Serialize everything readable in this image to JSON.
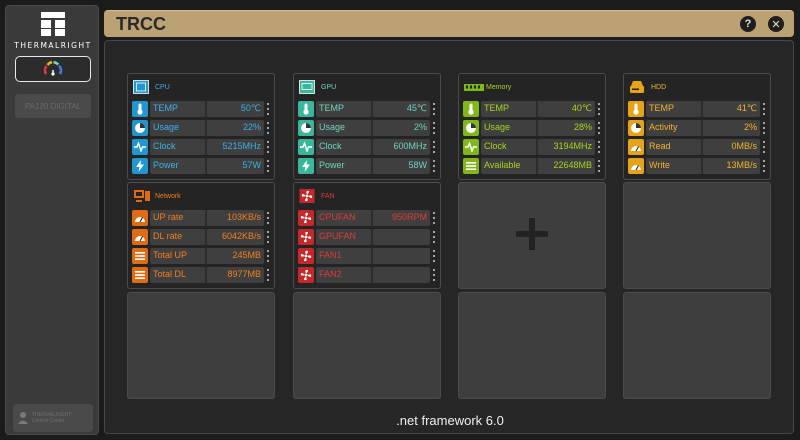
{
  "sidebar": {
    "logo_text": "THERMALRIGHT",
    "device_item": "PA120 DIGITAL",
    "control_center": [
      "THERMALRIGHT",
      "Control Center"
    ]
  },
  "titlebar": {
    "title": "TRCC",
    "help_icon": "?",
    "close_icon": "✕"
  },
  "footer": ".net framework 6.0",
  "colors": {
    "cpu": "#3bb0e8",
    "gpu": "#6fd4bf",
    "memory": "#a6d41c",
    "hdd": "#f2b32b",
    "network": "#f27f22",
    "fan": "#e03a3a",
    "title_bar": "#bba274"
  },
  "panels": {
    "cpu": {
      "title": "CPU",
      "rows": [
        {
          "label": "TEMP",
          "value": "50℃",
          "icon": "thermometer-icon"
        },
        {
          "label": "Usage",
          "value": "22%",
          "icon": "pie-icon"
        },
        {
          "label": "Clock",
          "value": "5215MHz",
          "icon": "pulse-icon"
        },
        {
          "label": "Power",
          "value": "57W",
          "icon": "lightning-icon"
        }
      ]
    },
    "gpu": {
      "title": "GPU",
      "rows": [
        {
          "label": "TEMP",
          "value": "45℃",
          "icon": "thermometer-icon"
        },
        {
          "label": "Usage",
          "value": "2%",
          "icon": "pie-icon"
        },
        {
          "label": "Clock",
          "value": "600MHz",
          "icon": "pulse-icon"
        },
        {
          "label": "Power",
          "value": "58W",
          "icon": "lightning-icon"
        }
      ]
    },
    "memory": {
      "title": "Memory",
      "rows": [
        {
          "label": "TEMP",
          "value": "40℃",
          "icon": "thermometer-icon"
        },
        {
          "label": "Usage",
          "value": "28%",
          "icon": "pie-icon"
        },
        {
          "label": "Clock",
          "value": "3194MHz",
          "icon": "pulse-icon"
        },
        {
          "label": "Available",
          "value": "22648MB",
          "icon": "list-icon"
        }
      ]
    },
    "hdd": {
      "title": "HDD",
      "rows": [
        {
          "label": "TEMP",
          "value": "41℃",
          "icon": "thermometer-icon"
        },
        {
          "label": "Activity",
          "value": "2%",
          "icon": "pie-icon"
        },
        {
          "label": "Read",
          "value": "0MB/s",
          "icon": "gauge-icon"
        },
        {
          "label": "Write",
          "value": "13MB/s",
          "icon": "gauge-icon"
        }
      ]
    },
    "network": {
      "title": "Network",
      "rows": [
        {
          "label": "UP rate",
          "value": "103KB/s",
          "icon": "gauge-icon"
        },
        {
          "label": "DL rate",
          "value": "6042KB/s",
          "icon": "gauge-icon"
        },
        {
          "label": "Total UP",
          "value": "245MB",
          "icon": "list-icon"
        },
        {
          "label": "Total DL",
          "value": "8977MB",
          "icon": "list-icon"
        }
      ]
    },
    "fan": {
      "title": "FAN",
      "rows": [
        {
          "label": "CPUFAN",
          "value": "950RPM",
          "icon": "fan-icon"
        },
        {
          "label": "GPUFAN",
          "value": "",
          "icon": "fan-icon"
        },
        {
          "label": "FAN1",
          "value": "",
          "icon": "fan-icon"
        },
        {
          "label": "FAN2",
          "value": "",
          "icon": "fan-icon"
        }
      ]
    }
  }
}
